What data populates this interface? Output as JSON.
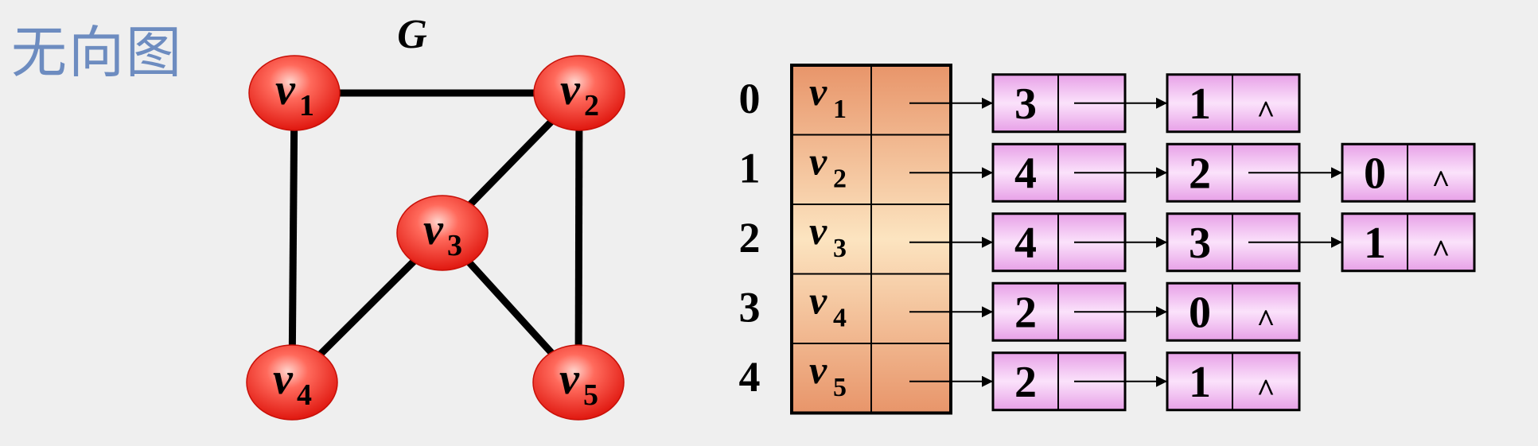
{
  "page": {
    "title": "无向图"
  },
  "graph": {
    "label": "G",
    "vertices": [
      {
        "id": "v1",
        "base": "v",
        "sub": "1"
      },
      {
        "id": "v2",
        "base": "v",
        "sub": "2"
      },
      {
        "id": "v3",
        "base": "v",
        "sub": "3"
      },
      {
        "id": "v4",
        "base": "v",
        "sub": "4"
      },
      {
        "id": "v5",
        "base": "v",
        "sub": "5"
      }
    ],
    "edges": [
      [
        "v1",
        "v2"
      ],
      [
        "v1",
        "v4"
      ],
      [
        "v2",
        "v3"
      ],
      [
        "v2",
        "v5"
      ],
      [
        "v3",
        "v4"
      ],
      [
        "v3",
        "v5"
      ]
    ]
  },
  "adjacency": {
    "rows": [
      {
        "index": "0",
        "vertex": "v",
        "sub": "1",
        "nodes": [
          "3",
          "1"
        ]
      },
      {
        "index": "1",
        "vertex": "v",
        "sub": "2",
        "nodes": [
          "4",
          "2",
          "0"
        ]
      },
      {
        "index": "2",
        "vertex": "v",
        "sub": "3",
        "nodes": [
          "4",
          "3",
          "1"
        ]
      },
      {
        "index": "3",
        "vertex": "v",
        "sub": "4",
        "nodes": [
          "2",
          "0"
        ]
      },
      {
        "index": "4",
        "vertex": "v",
        "sub": "5",
        "nodes": [
          "2",
          "1"
        ]
      }
    ],
    "null_symbol": "^"
  },
  "colors": {
    "vertex_fill": "#ee2a24",
    "head_cell": "#f0a878",
    "node_fill": "#f0b8f0",
    "title": "#6d8cc0"
  }
}
